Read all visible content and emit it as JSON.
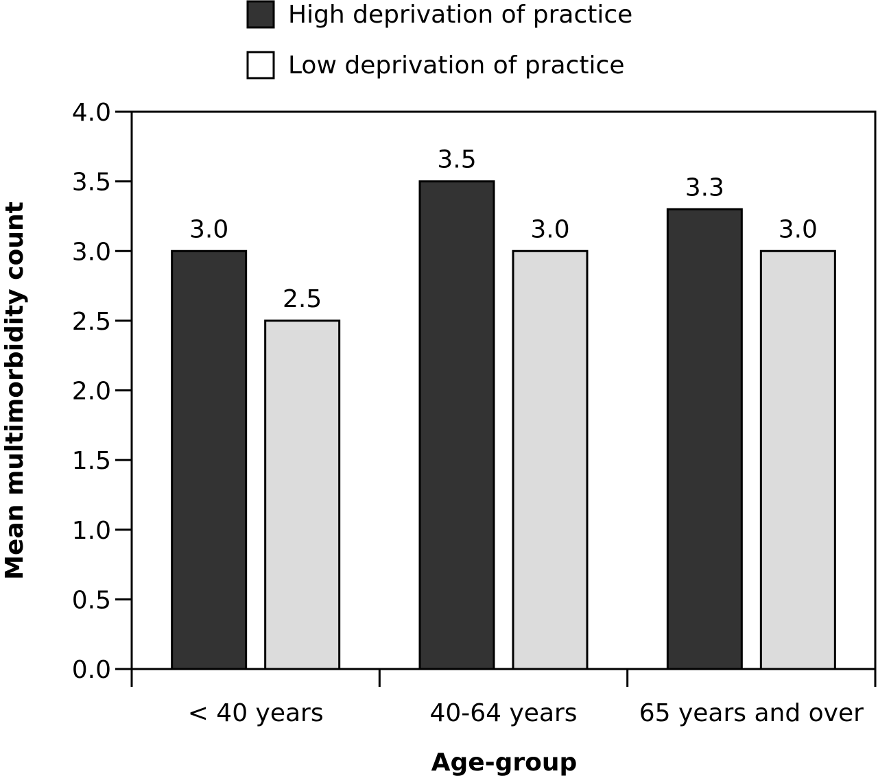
{
  "colors": {
    "high": "#333333",
    "low": "#dcdcdc",
    "stroke": "#000000"
  },
  "chart_data": {
    "type": "bar",
    "categories": [
      "< 40 years",
      "40-64 years",
      "65 years and over"
    ],
    "series": [
      {
        "name": "High deprivation of practice",
        "values": [
          3.0,
          3.5,
          3.3
        ],
        "labels": [
          "3.0",
          "3.5",
          "3.3"
        ]
      },
      {
        "name": "Low deprivation of practice",
        "values": [
          2.5,
          3.0,
          3.0
        ],
        "labels": [
          "2.5",
          "3.0",
          "3.0"
        ]
      }
    ],
    "xlabel": "Age-group",
    "ylabel": "Mean multimorbidity count",
    "ylim": [
      0,
      4.0
    ],
    "yticks": [
      "0.0",
      "0.5",
      "1.0",
      "1.5",
      "2.0",
      "2.5",
      "3.0",
      "3.5",
      "4.0"
    ],
    "legend_position": "top",
    "grid": false
  }
}
